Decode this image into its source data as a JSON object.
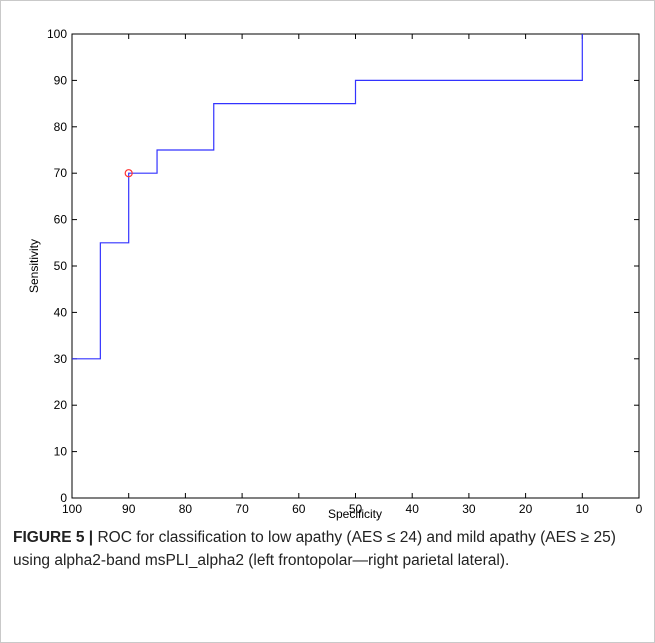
{
  "chart_data": {
    "type": "line",
    "title": "",
    "xlabel": "Specificity",
    "ylabel": "Sensitivity",
    "xlim": [
      100,
      0
    ],
    "ylim": [
      0,
      100
    ],
    "x_reversed": true,
    "xticks": [
      100,
      90,
      80,
      70,
      60,
      50,
      40,
      30,
      20,
      10,
      0
    ],
    "yticks": [
      0,
      10,
      20,
      30,
      40,
      50,
      60,
      70,
      80,
      90,
      100
    ],
    "grid": false,
    "series": [
      {
        "step": "post",
        "color": "#3333ff",
        "x": [
          100,
          95,
          95,
          90,
          90,
          85,
          85,
          75,
          75,
          50,
          50,
          10,
          10
        ],
        "y": [
          30,
          30,
          55,
          55,
          70,
          70,
          75,
          75,
          85,
          85,
          90,
          90,
          100
        ]
      }
    ],
    "marker": {
      "x": 90,
      "y": 70,
      "color": "#ff3333",
      "shape": "circle"
    }
  },
  "caption": {
    "label": "FIGURE 5 |",
    "text": " ROC for classification to low apathy (AES ≤ 24) and mild apathy (AES ≥ 25) using alpha2-band msPLI_alpha2 (left frontopolar—right parietal lateral)."
  }
}
